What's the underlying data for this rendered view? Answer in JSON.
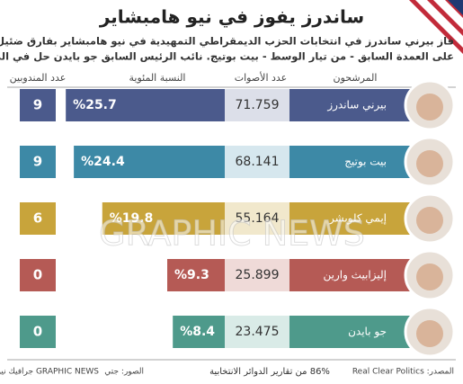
{
  "chart_data": {
    "type": "bar",
    "title": "ساندرز يفوز في نيو هامبشاير",
    "subtitle": [
      "فاز بيرني ساندرز في انتخابات الحزب الديمقراطي التمهيدية في نيو هامبشاير بفارق ضئيل",
      "على العمدة السابق - من تيار الوسط - بيت بوتيج. نائب الرئيس السابق جو بايدن حل في المركز الخامس"
    ],
    "column_headers": {
      "candidates": "المرشحون",
      "votes": "عدد الأصوات",
      "percent": "النسبة المئوية",
      "delegates": "عدد المندوبين"
    },
    "categories": [
      "بيرني ساندرز",
      "بيت بوتيج",
      "إيمي كلوبشر",
      "إليزابيث وارين",
      "جو بايدن"
    ],
    "values": [
      25.7,
      24.4,
      19.8,
      9.3,
      8.4
    ],
    "value_labels": [
      "%25.7",
      "%24.4",
      "%19.8",
      "%9.3",
      "%8.4"
    ],
    "votes": [
      "71.759",
      "68.141",
      "55.164",
      "25.899",
      "23.475"
    ],
    "delegates": [
      9,
      9,
      6,
      0,
      0
    ],
    "colors": [
      "#4b5a8c",
      "#3d89a6",
      "#c8a43b",
      "#b55a55",
      "#4e9a8b"
    ],
    "tints": [
      "#dcdfe9",
      "#d6e7ee",
      "#f1e8cc",
      "#efdad8",
      "#d9ebe7"
    ],
    "watermark": "GRAPHIC NEWS",
    "footer": {
      "source": "المصدر: Real Clear Politics",
      "note": "86% من تقارير الدوائر الانتخابية",
      "photos": "الصور: جتي",
      "credit": "GRAPHIC NEWS جرافيك نيوز"
    }
  }
}
